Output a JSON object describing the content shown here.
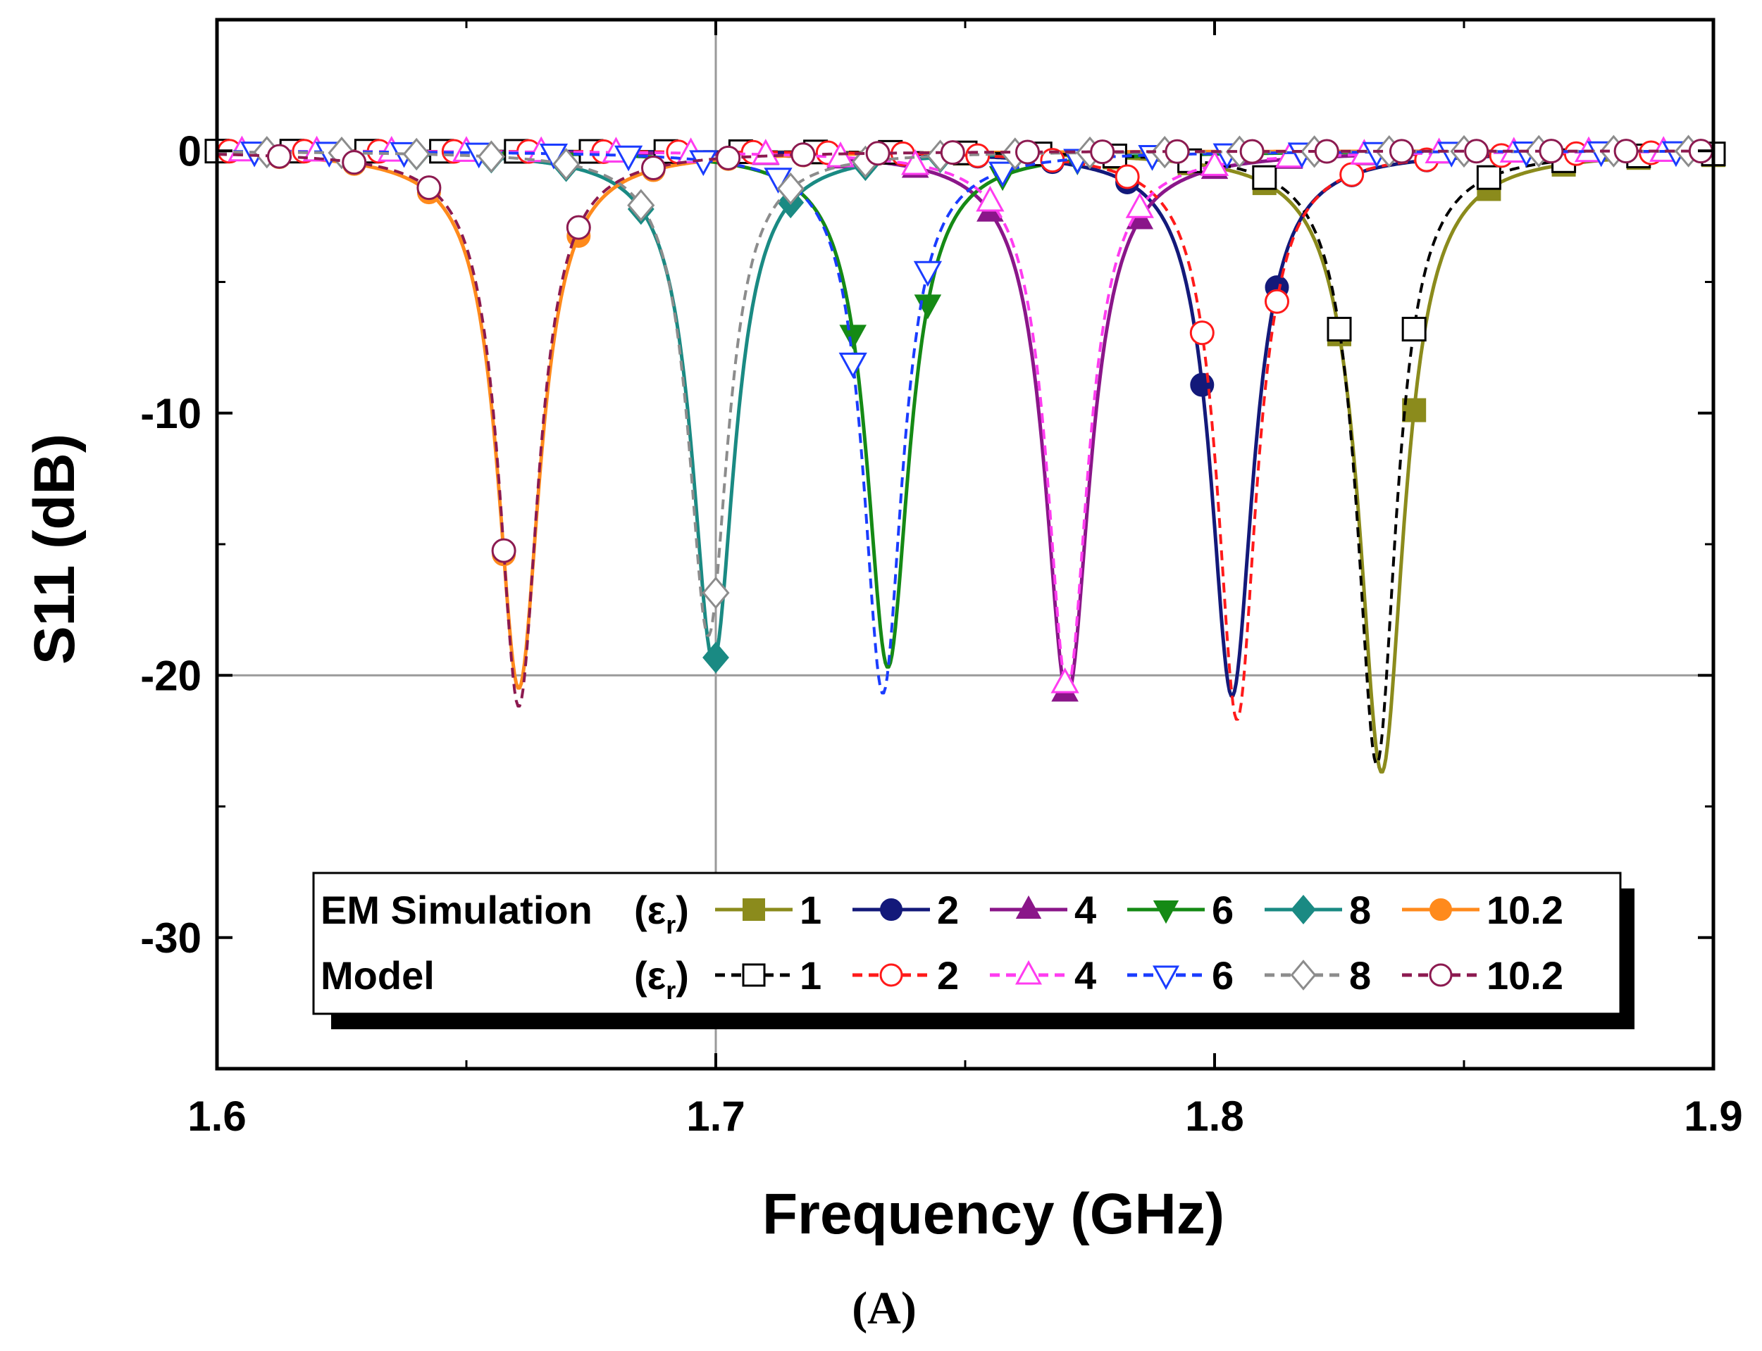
{
  "chart_data": {
    "type": "line",
    "title": "",
    "caption": "(A)",
    "xlabel": "Frequency  (GHz)",
    "ylabel": "S11  (dB)",
    "xlim": [
      1.6,
      1.9
    ],
    "ylim": [
      -35,
      5
    ],
    "xticks": [
      1.6,
      1.7,
      1.8,
      1.9
    ],
    "xtick_labels": [
      "1.6",
      "1.7",
      "1.8",
      "1.9"
    ],
    "yticks": [
      0,
      -10,
      -20,
      -30
    ],
    "ytick_labels": [
      "0",
      "-10",
      "-20",
      "-30"
    ],
    "grid": {
      "x": [
        1.7
      ],
      "y": [
        -20
      ]
    },
    "legend": {
      "position": "bottom-right",
      "row_labels": [
        "EM Simulation",
        "Model"
      ],
      "symbol_label": "(εr)",
      "symbol_base": "ε",
      "symbol_sub": "r"
    },
    "series": [
      {
        "name": "1",
        "group": "EM Simulation",
        "color": "#8b8b1c",
        "dash": "solid",
        "marker": "square",
        "filled": true,
        "f0": 1.8335,
        "min_db": -23.7,
        "width": 0.0055
      },
      {
        "name": "2",
        "group": "EM Simulation",
        "color": "#13197a",
        "dash": "solid",
        "marker": "circle",
        "filled": true,
        "f0": 1.8035,
        "min_db": -20.8,
        "width": 0.0052
      },
      {
        "name": "4",
        "group": "EM Simulation",
        "color": "#8a1689",
        "dash": "solid",
        "marker": "triangle-up",
        "filled": true,
        "f0": 1.7705,
        "min_db": -20.8,
        "width": 0.0055
      },
      {
        "name": "6",
        "group": "EM Simulation",
        "color": "#158a15",
        "dash": "solid",
        "marker": "triangle-down",
        "filled": true,
        "f0": 1.7345,
        "min_db": -19.7,
        "width": 0.0052
      },
      {
        "name": "8",
        "group": "EM Simulation",
        "color": "#1a8a83",
        "dash": "solid",
        "marker": "diamond",
        "filled": true,
        "f0": 1.6995,
        "min_db": -19.5,
        "width": 0.0052
      },
      {
        "name": "10.2",
        "group": "EM Simulation",
        "color": "#ff8a1c",
        "dash": "solid",
        "marker": "circle",
        "filled": true,
        "f0": 1.6605,
        "min_db": -20.5,
        "width": 0.0052
      },
      {
        "name": "1",
        "group": "Model",
        "color": "#000000",
        "dash": "dash",
        "marker": "square",
        "filled": false,
        "f0": 1.8325,
        "min_db": -23.4,
        "width": 0.0048
      },
      {
        "name": "2",
        "group": "Model",
        "color": "#ff1a1a",
        "dash": "dash",
        "marker": "circle",
        "filled": false,
        "f0": 1.8045,
        "min_db": -21.7,
        "width": 0.0048
      },
      {
        "name": "4",
        "group": "Model",
        "color": "#ff3cf0",
        "dash": "dash",
        "marker": "triangle-up",
        "filled": false,
        "f0": 1.7705,
        "min_db": -20.5,
        "width": 0.005
      },
      {
        "name": "6",
        "group": "Model",
        "color": "#1a3cff",
        "dash": "dash",
        "marker": "triangle-down",
        "filled": false,
        "f0": 1.7335,
        "min_db": -20.7,
        "width": 0.0048
      },
      {
        "name": "8",
        "group": "Model",
        "color": "#8c8c8c",
        "dash": "dash",
        "marker": "diamond",
        "filled": false,
        "f0": 1.6985,
        "min_db": -18.5,
        "width": 0.0048
      },
      {
        "name": "10.2",
        "group": "Model",
        "color": "#8c1a50",
        "dash": "dash",
        "marker": "circle",
        "filled": false,
        "f0": 1.6605,
        "min_db": -21.2,
        "width": 0.0048
      }
    ]
  }
}
